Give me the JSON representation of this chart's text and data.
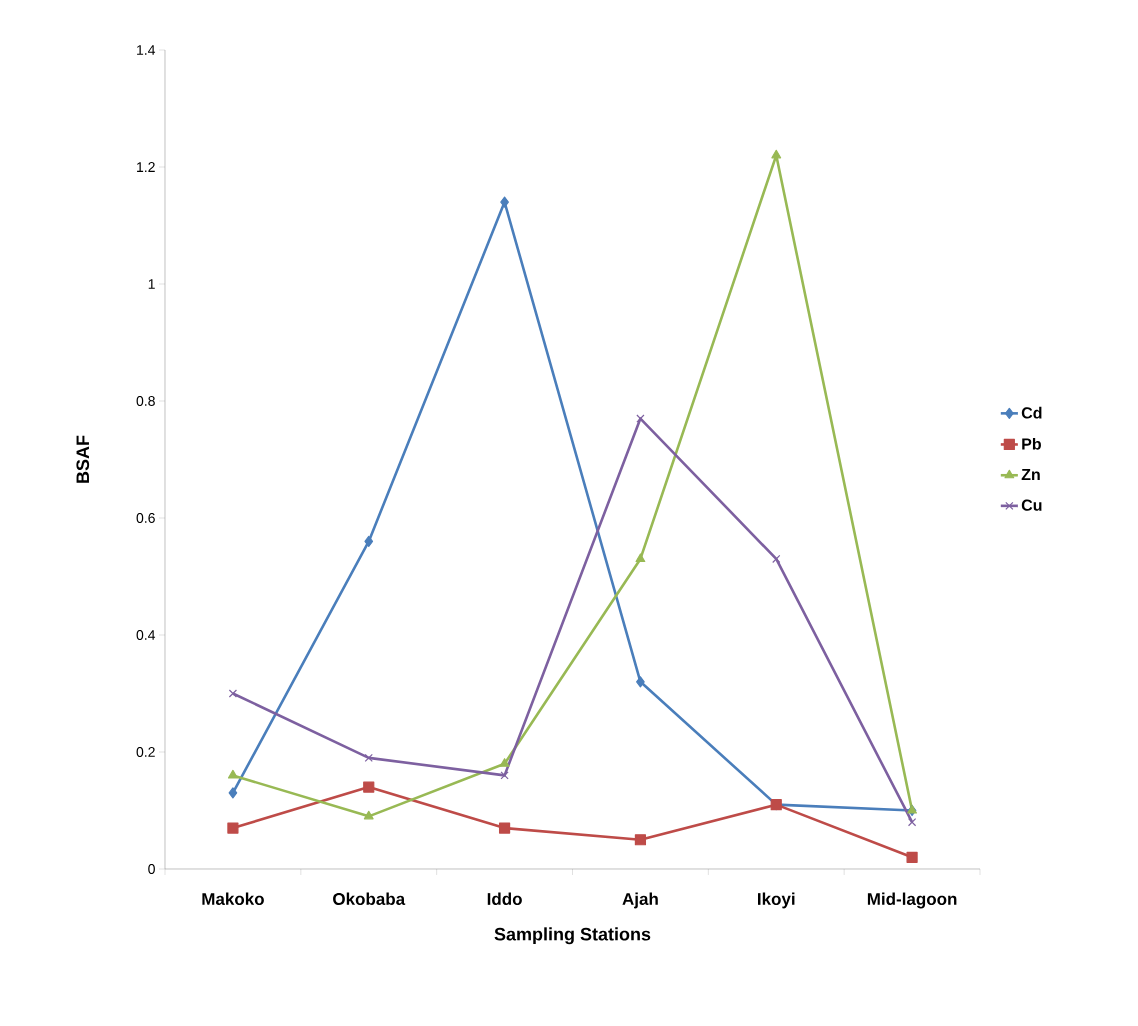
{
  "chart_data": {
    "type": "line",
    "xlabel": "Sampling Stations",
    "ylabel": "BSAF",
    "categories": [
      "Makoko",
      "Okobaba",
      "Iddo",
      "Ajah",
      "Ikoyi",
      "Mid-lagoon"
    ],
    "series": [
      {
        "name": "Cd",
        "color": "#4a7ebb",
        "marker": "diamond",
        "values": [
          0.13,
          0.56,
          1.14,
          0.32,
          0.11,
          0.1
        ]
      },
      {
        "name": "Pb",
        "color": "#be4b48",
        "marker": "square",
        "values": [
          0.07,
          0.14,
          0.07,
          0.05,
          0.11,
          0.02
        ]
      },
      {
        "name": "Zn",
        "color": "#98b954",
        "marker": "triangle",
        "values": [
          0.16,
          0.09,
          0.18,
          0.53,
          1.22,
          0.1
        ]
      },
      {
        "name": "Cu",
        "color": "#7d60a0",
        "marker": "cross",
        "values": [
          0.3,
          0.19,
          0.16,
          0.77,
          0.53,
          0.08
        ]
      }
    ],
    "ylim": [
      0,
      1.4
    ],
    "yticks": [
      0,
      0.2,
      0.4,
      0.6,
      0.8,
      1,
      1.2,
      1.4
    ],
    "legend": "right",
    "grid": false,
    "line_style": "solid"
  }
}
